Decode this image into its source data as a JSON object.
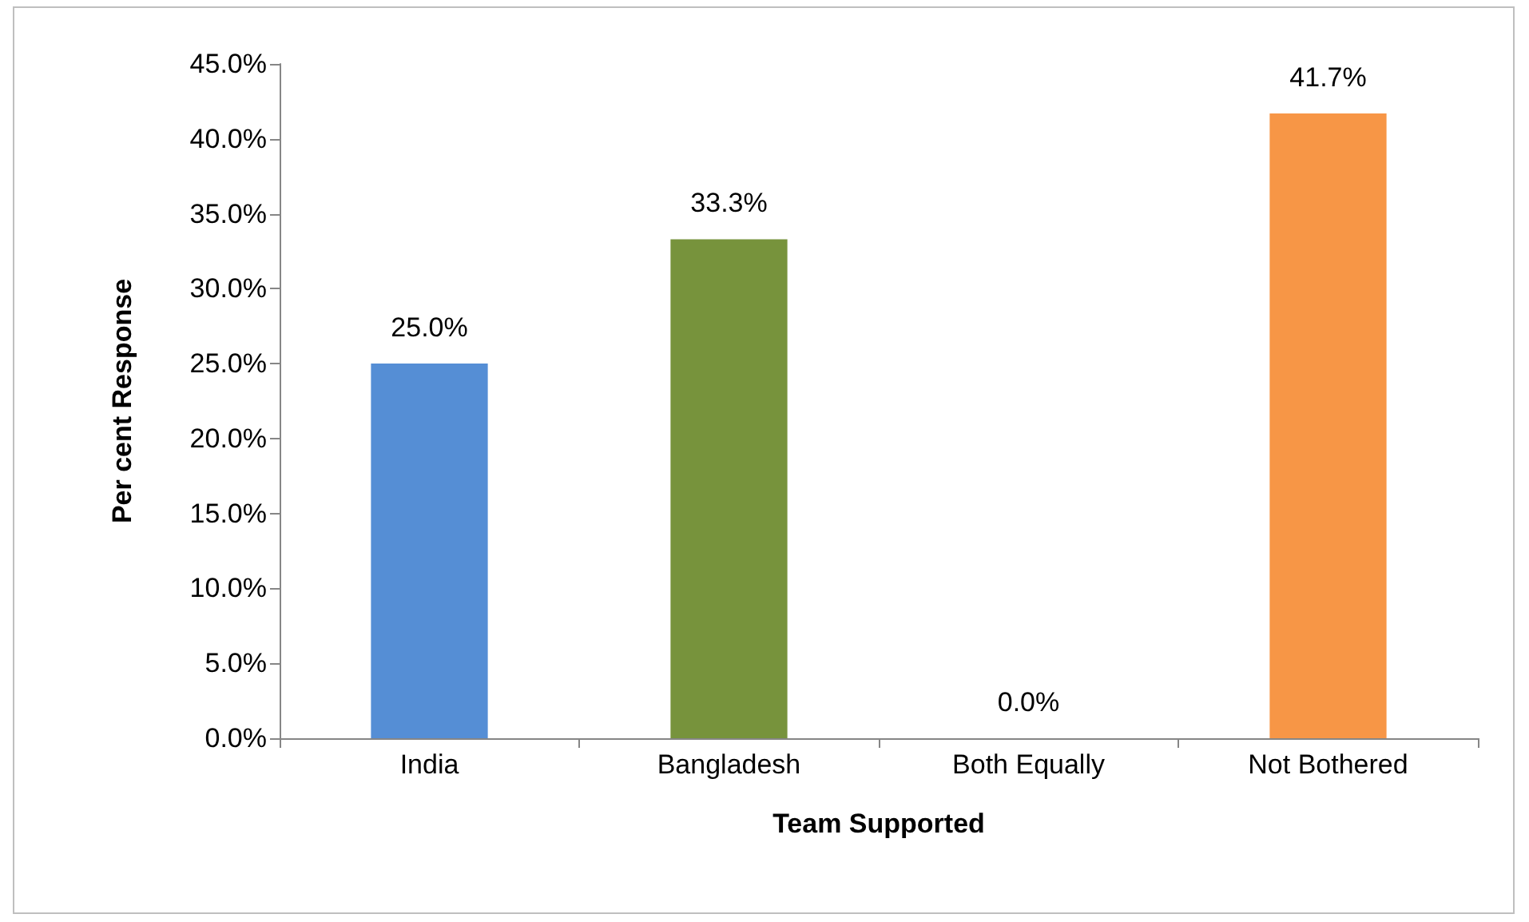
{
  "chart_data": {
    "type": "bar",
    "categories": [
      "India",
      "Bangladesh",
      "Both Equally",
      "Not Bothered"
    ],
    "values": [
      25.0,
      33.3,
      0.0,
      41.7
    ],
    "colors": [
      "#558ed5",
      "#77933c",
      "#8064a2",
      "#f79646"
    ],
    "value_labels": [
      "25.0%",
      "33.3%",
      "0.0%",
      "41.7%"
    ],
    "xlabel": "Team Supported",
    "ylabel": "Per cent Response",
    "ylim": [
      0,
      45
    ],
    "yticks": [
      {
        "value": 0,
        "label": "0.0%"
      },
      {
        "value": 5,
        "label": "5.0%"
      },
      {
        "value": 10,
        "label": "10.0%"
      },
      {
        "value": 15,
        "label": "15.0%"
      },
      {
        "value": 20,
        "label": "20.0%"
      },
      {
        "value": 25,
        "label": "25.0%"
      },
      {
        "value": 30,
        "label": "30.0%"
      },
      {
        "value": 35,
        "label": "35.0%"
      },
      {
        "value": 40,
        "label": "40.0%"
      },
      {
        "value": 45,
        "label": "45.0%"
      }
    ],
    "grid": false
  }
}
